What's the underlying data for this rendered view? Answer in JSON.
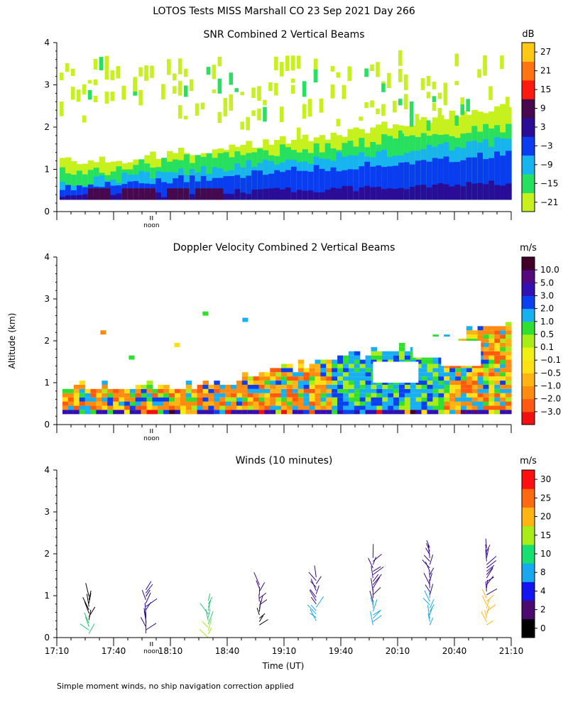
{
  "page": {
    "title": "LOTOS Tests MISS Marshall CO  23 Sep 2021 Day 266",
    "ylabel": "Altitude (km)",
    "xlabel": "Time (UT)",
    "footnote": "Simple moment winds, no ship navigation correction applied",
    "noon_label": "noon",
    "x_ticks": [
      "17:10",
      "17:40",
      "18:10",
      "18:40",
      "19:10",
      "19:40",
      "20:10",
      "20:40",
      "21:10"
    ],
    "y_ticks": [
      "0",
      "1",
      "2",
      "3",
      "4"
    ]
  },
  "chart_data": [
    {
      "type": "heatmap",
      "title": "SNR Combined 2 Vertical Beams",
      "xlabel": "",
      "ylabel": "Altitude (km)",
      "xlim_hours": [
        17.1667,
        21.1667
      ],
      "ylim": [
        0,
        4
      ],
      "colorbar": {
        "unit": "dB",
        "tick_labels": [
          "27",
          "21",
          "15",
          "9",
          "3",
          "−3",
          "−9",
          "−15",
          "−21"
        ],
        "bins": [
          "#c6f01e",
          "#28e060",
          "#18b4f0",
          "#0a3cf0",
          "#2a0c96",
          "#48084e",
          "#ff1a10",
          "#ff7410",
          "#ffc814"
        ]
      },
      "fill": {
        "gaps_height_km": [
          2.0,
          2.0,
          1.9,
          2.0,
          2.1,
          2.3,
          2.5,
          2.6,
          2.3,
          2.2,
          2.3,
          2.4,
          2.6,
          2.4,
          2.1,
          2.0,
          2.0,
          2.1,
          2.0,
          2.2,
          2.1,
          2.0,
          2.1,
          2.0,
          2.2,
          2.4,
          2.3,
          2.0,
          1.9,
          2.0,
          2.0,
          1.9,
          1.9,
          1.8,
          1.9,
          2.0,
          2.1,
          1.9,
          2.0,
          2.1,
          1.8,
          1.7,
          1.6,
          1.8,
          1.9,
          2.1,
          1.9,
          1.8,
          1.9,
          2.0,
          1.8,
          1.9,
          2.1,
          1.7,
          1.5,
          1.8,
          2.0,
          1.9,
          1.8,
          1.9,
          1.8,
          2.0,
          1.9,
          1.7,
          1.8,
          1.9,
          2.1,
          1.8,
          1.7,
          1.8,
          1.9,
          1.8,
          1.9,
          1.6,
          1.9,
          2.0,
          1.7,
          1.8,
          2.0,
          1.9
        ],
        "top_km_start": 1.1,
        "top_km_end": 2.4
      }
    },
    {
      "type": "heatmap",
      "title": "Doppler Velocity Combined 2 Vertical Beams",
      "xlabel": "",
      "ylabel": "Altitude (km)",
      "xlim_hours": [
        17.1667,
        21.1667
      ],
      "ylim": [
        0,
        4
      ],
      "colorbar": {
        "unit": "m/s",
        "tick_labels": [
          "10.0",
          "5.0",
          "3.0",
          "2.0",
          "1.0",
          "0.5",
          "0.1",
          "−0.1",
          "−0.5",
          "−1.0",
          "−2.0",
          "−3.0"
        ],
        "bins": [
          "#f01010",
          "#ff5a10",
          "#ff8c10",
          "#ffb414",
          "#ffe014",
          "#f0f014",
          "#a8ec18",
          "#30e030",
          "#18b0f0",
          "#0a40f0",
          "#3210b4",
          "#56087e",
          "#400028"
        ]
      },
      "fill": {
        "top_km_start": 0.75,
        "top_km_end": 2.2
      }
    },
    {
      "type": "scatter",
      "title": "Winds (10 minutes)",
      "xlabel": "Time (UT)",
      "ylabel": "Altitude (km)",
      "xlim_hours": [
        17.1667,
        21.1667
      ],
      "ylim": [
        0,
        4
      ],
      "colorbar": {
        "unit": "m/s",
        "tick_labels": [
          "30",
          "25",
          "20",
          "15",
          "10",
          "8",
          "4",
          "2",
          "0"
        ],
        "bins": [
          "#000000",
          "#4a0a70",
          "#1414f0",
          "#18a8f0",
          "#18e070",
          "#a8ec18",
          "#ffb414",
          "#ff6a10",
          "#ff1010"
        ]
      },
      "profiles": [
        {
          "time_h": 17.45,
          "base_km": 0.1,
          "top_km": 1.0,
          "color_low": "#28c878",
          "color_high": "#000000"
        },
        {
          "time_h": 17.95,
          "base_km": 0.1,
          "top_km": 1.15,
          "color_low": "#3a0a86",
          "color_high": "#2a0c96"
        },
        {
          "time_h": 18.5,
          "base_km": 0.0,
          "top_km": 0.9,
          "color_low": "#a8ec18",
          "color_high": "#28c878"
        },
        {
          "time_h": 18.95,
          "base_km": 0.3,
          "top_km": 1.25,
          "color_low": "#000000",
          "color_high": "#3a0a86"
        },
        {
          "time_h": 19.45,
          "base_km": 0.4,
          "top_km": 1.45,
          "color_low": "#18a8f0",
          "color_high": "#3a0a86"
        },
        {
          "time_h": 19.95,
          "base_km": 0.3,
          "top_km": 1.9,
          "color_low": "#18a8f0",
          "color_high": "#3a0a86"
        },
        {
          "time_h": 20.45,
          "base_km": 0.3,
          "top_km": 2.15,
          "color_low": "#18a8f0",
          "color_high": "#3a0a86"
        },
        {
          "time_h": 20.95,
          "base_km": 0.3,
          "top_km": 2.15,
          "color_low": "#ffb414",
          "color_high": "#3a0a86"
        }
      ]
    }
  ]
}
